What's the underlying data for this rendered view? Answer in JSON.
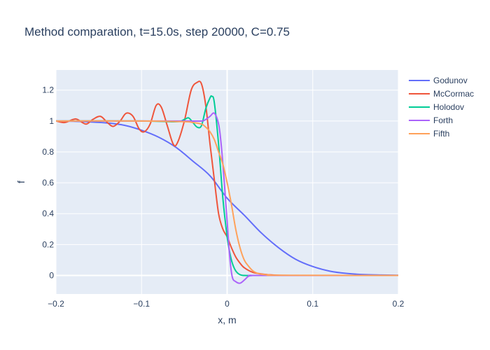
{
  "chart_data": {
    "type": "line",
    "title": "Method comparation, t=15.0s, step 20000, C=0.75",
    "xlabel": "x, m",
    "ylabel": "f",
    "xlim": [
      -0.2,
      0.2
    ],
    "ylim": [
      -0.12,
      1.33
    ],
    "grid": true,
    "legend_position": "top-right",
    "x_ticks": [
      -0.2,
      -0.1,
      0,
      0.1,
      0.2
    ],
    "x_tick_labels": [
      "−0.2",
      "−0.1",
      "0",
      "0.1",
      "0.2"
    ],
    "y_ticks": [
      0,
      0.2,
      0.4,
      0.6,
      0.8,
      1,
      1.2
    ],
    "y_tick_labels": [
      "0",
      "0.2",
      "0.4",
      "0.6",
      "0.8",
      "1",
      "1.2"
    ],
    "series": [
      {
        "name": "Godunov",
        "color": "#636efa",
        "x": [
          -0.2,
          -0.18,
          -0.16,
          -0.14,
          -0.12,
          -0.1,
          -0.08,
          -0.06,
          -0.04,
          -0.02,
          0,
          0.02,
          0.04,
          0.06,
          0.08,
          0.1,
          0.12,
          0.14,
          0.16,
          0.18,
          0.2
        ],
        "y": [
          1.0,
          0.998,
          0.994,
          0.987,
          0.972,
          0.94,
          0.895,
          0.83,
          0.74,
          0.645,
          0.5,
          0.39,
          0.275,
          0.18,
          0.105,
          0.058,
          0.028,
          0.013,
          0.006,
          0.003,
          0.001
        ]
      },
      {
        "name": "McCormac",
        "color": "#ef553b",
        "x": [
          -0.2,
          -0.19,
          -0.18,
          -0.175,
          -0.165,
          -0.157,
          -0.148,
          -0.14,
          -0.133,
          -0.125,
          -0.118,
          -0.11,
          -0.103,
          -0.097,
          -0.09,
          -0.083,
          -0.077,
          -0.07,
          -0.063,
          -0.058,
          -0.05,
          -0.042,
          -0.035,
          -0.03,
          -0.025,
          -0.02,
          -0.015,
          -0.01,
          -0.005,
          0,
          0.005,
          0.01,
          0.015,
          0.02,
          0.03,
          0.04,
          0.05,
          0.06,
          0.08,
          0.1,
          0.2
        ],
        "y": [
          1.0,
          0.99,
          1.01,
          1.01,
          0.98,
          1.01,
          1.03,
          0.99,
          0.965,
          1.0,
          1.05,
          1.03,
          0.95,
          0.93,
          0.98,
          1.1,
          1.09,
          0.97,
          0.85,
          0.86,
          1.0,
          1.2,
          1.25,
          1.24,
          1.1,
          0.85,
          0.62,
          0.4,
          0.3,
          0.25,
          0.18,
          0.12,
          0.08,
          0.05,
          0.02,
          0.01,
          0.004,
          0.001,
          0,
          0,
          0
        ]
      },
      {
        "name": "Holodov",
        "color": "#00cc96",
        "x": [
          -0.2,
          -0.1,
          -0.06,
          -0.05,
          -0.045,
          -0.04,
          -0.035,
          -0.03,
          -0.025,
          -0.02,
          -0.018,
          -0.015,
          -0.01,
          -0.005,
          0,
          0.003,
          0.006,
          0.01,
          0.015,
          0.02,
          0.03,
          0.05,
          0.2
        ],
        "y": [
          1.0,
          1.0,
          0.995,
          1.01,
          1.02,
          0.99,
          0.96,
          0.97,
          1.08,
          1.15,
          1.16,
          1.12,
          0.85,
          0.5,
          0.25,
          0.15,
          0.08,
          0.03,
          0.005,
          0.0,
          0,
          0,
          0
        ]
      },
      {
        "name": "Forth",
        "color": "#ab63fa",
        "x": [
          -0.2,
          -0.1,
          -0.05,
          -0.03,
          -0.025,
          -0.02,
          -0.015,
          -0.01,
          -0.007,
          -0.004,
          0,
          0.003,
          0.006,
          0.01,
          0.015,
          0.02,
          0.025,
          0.03,
          0.04,
          0.2
        ],
        "y": [
          1.0,
          1.0,
          1.0,
          1.0,
          1.01,
          1.03,
          1.05,
          0.98,
          0.85,
          0.65,
          0.35,
          0.12,
          -0.01,
          -0.04,
          -0.05,
          -0.03,
          -0.005,
          0.0,
          0.0,
          0
        ]
      },
      {
        "name": "Fifth",
        "color": "#ffa15a",
        "x": [
          -0.2,
          -0.1,
          -0.05,
          -0.04,
          -0.03,
          -0.025,
          -0.02,
          -0.015,
          -0.01,
          -0.005,
          0,
          0.005,
          0.01,
          0.015,
          0.02,
          0.025,
          0.03,
          0.035,
          0.04,
          0.05,
          0.06,
          0.2
        ],
        "y": [
          1.0,
          1.0,
          0.995,
          0.99,
          0.98,
          0.96,
          0.93,
          0.88,
          0.8,
          0.72,
          0.6,
          0.46,
          0.3,
          0.18,
          0.1,
          0.06,
          0.03,
          0.015,
          0.008,
          0.003,
          0.001,
          0
        ]
      }
    ]
  }
}
